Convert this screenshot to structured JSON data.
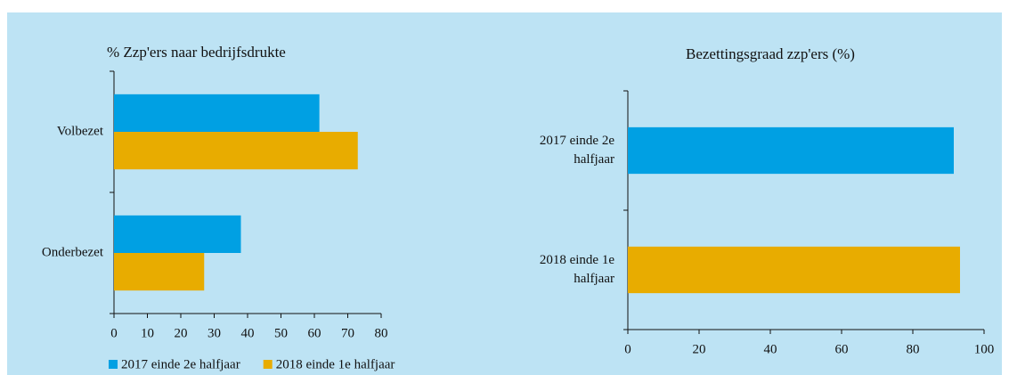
{
  "chart_data": [
    {
      "type": "bar",
      "orientation": "horizontal",
      "title": "% Zzp'ers naar bedrijfsdrukte",
      "categories": [
        "Volbezet",
        "Onderbezet"
      ],
      "series": [
        {
          "name": "2017 einde 2e halfjaar",
          "color": "#00a0e3",
          "values": [
            61.5,
            38
          ]
        },
        {
          "name": "2018 einde 1e halfjaar",
          "color": "#e8ac00",
          "values": [
            73,
            27
          ]
        }
      ],
      "xlim": [
        0,
        80
      ],
      "xticks": [
        0,
        10,
        20,
        30,
        40,
        50,
        60,
        70,
        80
      ],
      "legend": "bottom"
    },
    {
      "type": "bar",
      "orientation": "horizontal",
      "title": "Bezettingsgraad zzp'ers (%)",
      "categories": [
        "2017 einde 2e halfjaar",
        "2018 einde 1e halfjaar"
      ],
      "values": [
        91.5,
        93.25
      ],
      "colors": [
        "#00a0e3",
        "#e8ac00"
      ],
      "xlim": [
        0,
        100
      ],
      "xticks": [
        0,
        20,
        40,
        60,
        80,
        100
      ]
    }
  ]
}
